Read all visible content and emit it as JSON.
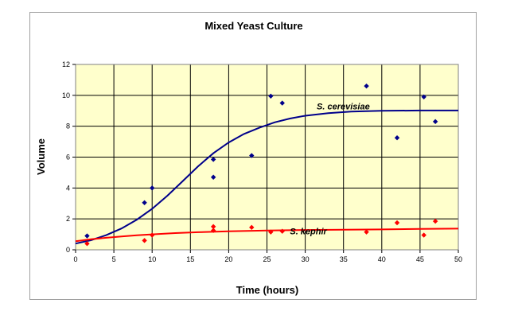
{
  "chart_data": {
    "type": "scatter",
    "title": "Mixed Yeast Culture",
    "xlabel": "Time (hours)",
    "ylabel": "Volume",
    "xlim": [
      0,
      50
    ],
    "ylim": [
      0,
      12
    ],
    "x_ticks": [
      0,
      5,
      10,
      15,
      20,
      25,
      30,
      35,
      40,
      45,
      50
    ],
    "y_ticks": [
      0,
      2,
      4,
      6,
      8,
      10,
      12
    ],
    "grid": true,
    "legend": "none",
    "plot_background": "#ffffcc",
    "series": [
      {
        "name": "S. cerevisiae",
        "color": "#00008b",
        "points": [
          {
            "x": 1.5,
            "y": 0.9
          },
          {
            "x": 9,
            "y": 3.05
          },
          {
            "x": 10,
            "y": 4.0
          },
          {
            "x": 18,
            "y": 5.85
          },
          {
            "x": 18,
            "y": 4.7
          },
          {
            "x": 23,
            "y": 6.1
          },
          {
            "x": 25.5,
            "y": 9.95
          },
          {
            "x": 27,
            "y": 9.5
          },
          {
            "x": 38,
            "y": 10.6
          },
          {
            "x": 42,
            "y": 7.25
          },
          {
            "x": 45.5,
            "y": 9.9
          },
          {
            "x": 47,
            "y": 8.3
          }
        ],
        "curve": [
          {
            "x": 0,
            "y": 0.4
          },
          {
            "x": 2,
            "y": 0.62
          },
          {
            "x": 4,
            "y": 0.95
          },
          {
            "x": 6,
            "y": 1.38
          },
          {
            "x": 8,
            "y": 1.95
          },
          {
            "x": 10,
            "y": 2.65
          },
          {
            "x": 12,
            "y": 3.5
          },
          {
            "x": 14,
            "y": 4.45
          },
          {
            "x": 16,
            "y": 5.4
          },
          {
            "x": 18,
            "y": 6.25
          },
          {
            "x": 20,
            "y": 6.95
          },
          {
            "x": 22,
            "y": 7.5
          },
          {
            "x": 24,
            "y": 7.9
          },
          {
            "x": 26,
            "y": 8.25
          },
          {
            "x": 28,
            "y": 8.5
          },
          {
            "x": 30,
            "y": 8.68
          },
          {
            "x": 33,
            "y": 8.85
          },
          {
            "x": 36,
            "y": 8.95
          },
          {
            "x": 40,
            "y": 9.0
          },
          {
            "x": 45,
            "y": 9.02
          },
          {
            "x": 50,
            "y": 9.02
          }
        ],
        "label": {
          "text": "S. cerevisiae",
          "x": 31.5,
          "y": 9.1
        }
      },
      {
        "name": "S. kephir",
        "color": "#ff0000",
        "points": [
          {
            "x": 1.5,
            "y": 0.4
          },
          {
            "x": 9,
            "y": 0.6
          },
          {
            "x": 10,
            "y": 0.95
          },
          {
            "x": 18,
            "y": 1.5
          },
          {
            "x": 18,
            "y": 1.25
          },
          {
            "x": 23,
            "y": 1.45
          },
          {
            "x": 25.5,
            "y": 1.15
          },
          {
            "x": 27,
            "y": 1.2
          },
          {
            "x": 38,
            "y": 1.15
          },
          {
            "x": 42,
            "y": 1.75
          },
          {
            "x": 45.5,
            "y": 0.95
          },
          {
            "x": 47,
            "y": 1.85
          }
        ],
        "curve": [
          {
            "x": 0,
            "y": 0.55
          },
          {
            "x": 2,
            "y": 0.68
          },
          {
            "x": 4,
            "y": 0.78
          },
          {
            "x": 6,
            "y": 0.86
          },
          {
            "x": 8,
            "y": 0.94
          },
          {
            "x": 10,
            "y": 1.0
          },
          {
            "x": 13,
            "y": 1.08
          },
          {
            "x": 16,
            "y": 1.14
          },
          {
            "x": 20,
            "y": 1.2
          },
          {
            "x": 25,
            "y": 1.25
          },
          {
            "x": 30,
            "y": 1.28
          },
          {
            "x": 35,
            "y": 1.3
          },
          {
            "x": 40,
            "y": 1.32
          },
          {
            "x": 45,
            "y": 1.35
          },
          {
            "x": 50,
            "y": 1.37
          }
        ],
        "label": {
          "text": "S. kephir",
          "x": 28,
          "y": 1.0
        }
      }
    ]
  }
}
